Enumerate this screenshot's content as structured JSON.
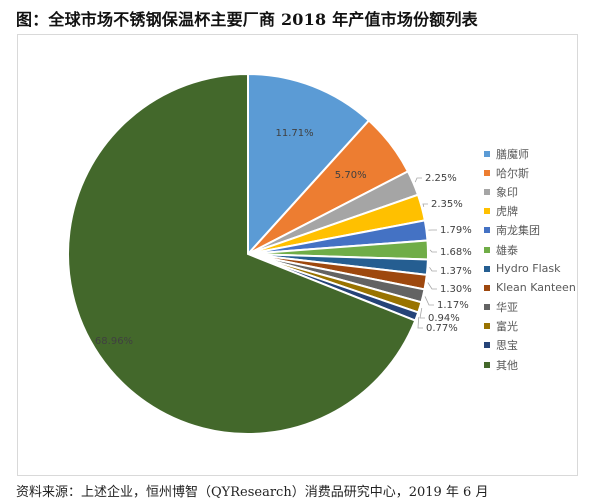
{
  "title": "图：全球市场不锈钢保温杯主要厂商 2018 年产值市场份额列表",
  "source": "资料来源：上述企业，恒州博智（QYResearch）消费品研究中心，2019 年 6 月",
  "chart_data": {
    "type": "pie",
    "title": "图：全球市场不锈钢保温杯主要厂商 2018 年产值市场份额列表",
    "start_angle": "12 o'clock, clockwise",
    "legend_position": "right",
    "categories": [
      "膳魔师",
      "哈尔斯",
      "象印",
      "虎牌",
      "南龙集团",
      "雄泰",
      "Hydro Flask",
      "Klean Kanteen",
      "华亚",
      "富光",
      "思宝",
      "其他"
    ],
    "values": [
      11.71,
      5.7,
      2.25,
      2.35,
      1.79,
      1.68,
      1.37,
      1.3,
      1.17,
      0.94,
      0.77,
      68.96
    ],
    "labels": [
      "11.71%",
      "5.70%",
      "2.25%",
      "2.35%",
      "1.79%",
      "1.68%",
      "1.37%",
      "1.30%",
      "1.17%",
      "0.94%",
      "0.77%",
      "68.96%"
    ],
    "colors": [
      "#5B9BD5",
      "#ED7D31",
      "#A5A5A5",
      "#FFC000",
      "#4472C4",
      "#70AD47",
      "#255E91",
      "#9E480E",
      "#636363",
      "#997300",
      "#264478",
      "#43682B"
    ],
    "unit": "%"
  },
  "legend": {
    "items": [
      {
        "label": "膳魔师",
        "color": "#5B9BD5"
      },
      {
        "label": "哈尔斯",
        "color": "#ED7D31"
      },
      {
        "label": "象印",
        "color": "#A5A5A5"
      },
      {
        "label": "虎牌",
        "color": "#FFC000"
      },
      {
        "label": "南龙集团",
        "color": "#4472C4"
      },
      {
        "label": "雄泰",
        "color": "#70AD47"
      },
      {
        "label": "Hydro Flask",
        "color": "#255E91"
      },
      {
        "label": "Klean Kanteen",
        "color": "#9E480E"
      },
      {
        "label": "华亚",
        "color": "#636363"
      },
      {
        "label": "富光",
        "color": "#997300"
      },
      {
        "label": "思宝",
        "color": "#264478"
      },
      {
        "label": "其他",
        "color": "#43682B"
      }
    ]
  }
}
